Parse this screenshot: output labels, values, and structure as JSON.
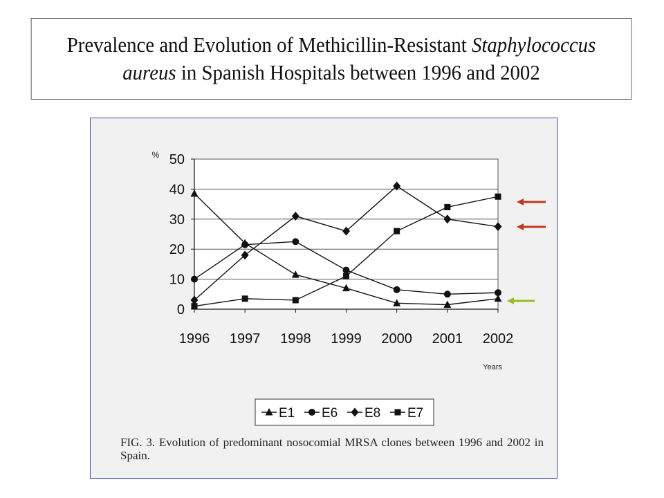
{
  "header": {
    "title_line1_a": "Prevalence and Evolution of Methicillin-Resistant ",
    "title_line1_b": "Staphylococcus",
    "title_line2_a": "aureus",
    "title_line2_b": " in Spanish Hospitals between 1996 and 2002"
  },
  "figure": {
    "caption": "FIG. 3. Evolution of predominant nosocomial MRSA clones between 1996 and 2002 in Spain."
  },
  "annotations": {
    "arrows": [
      {
        "points_to": "E7",
        "color": "#c0391b"
      },
      {
        "points_to": "E8",
        "color": "#c0391b"
      },
      {
        "points_to": "E1",
        "color": "#8dc21f"
      }
    ]
  },
  "chart_data": {
    "type": "line",
    "categories": [
      "1996",
      "1997",
      "1998",
      "1999",
      "2000",
      "2001",
      "2002"
    ],
    "ylabel": "%",
    "xlabel": "Years",
    "ylim": [
      0,
      50
    ],
    "yticks": [
      0,
      10,
      20,
      30,
      40,
      50
    ],
    "grid": "horizontal",
    "legend_position": "bottom",
    "series": [
      {
        "name": "E1",
        "marker": "triangle",
        "values": [
          38.5,
          22,
          11.5,
          7,
          2,
          1.5,
          3.5
        ]
      },
      {
        "name": "E6",
        "marker": "circle",
        "values": [
          10,
          21.5,
          22.5,
          13,
          6.5,
          5,
          5.5
        ]
      },
      {
        "name": "E8",
        "marker": "diamond",
        "values": [
          3,
          18,
          31,
          26,
          41,
          30,
          27.5
        ]
      },
      {
        "name": "E7",
        "marker": "square",
        "values": [
          1,
          3.5,
          3,
          11,
          26,
          34,
          37.5
        ]
      }
    ],
    "colors": {
      "line": "#111111",
      "grid": "#555555",
      "plot_bg": "#ffffff"
    }
  }
}
